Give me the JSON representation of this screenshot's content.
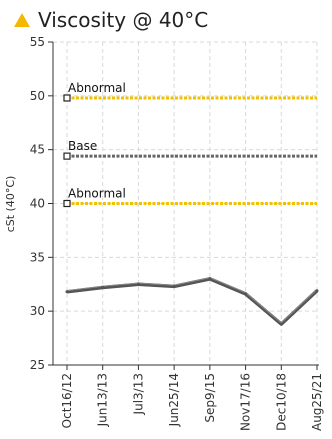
{
  "header": {
    "title": "Viscosity @ 40°C",
    "icon": "warning-triangle-icon",
    "icon_color": "#f5b800"
  },
  "chart_data": {
    "type": "line",
    "title": "Viscosity @ 40°C",
    "xlabel": "",
    "ylabel": "cSt (40°C)",
    "ylim": [
      25,
      55
    ],
    "yticks": [
      25,
      30,
      35,
      40,
      45,
      50,
      55
    ],
    "categories": [
      "Oct16/12",
      "Jun13/13",
      "Jul3/13",
      "Jun25/14",
      "Sep9/15",
      "Nov17/16",
      "Dec10/18",
      "Aug25/21"
    ],
    "series": [
      {
        "values": [
          31.8,
          32.2,
          32.5,
          32.3,
          33.0,
          31.6,
          28.8,
          31.9
        ],
        "color": "#555555"
      }
    ],
    "reference_lines": [
      {
        "label": "Abnormal",
        "value": 49.8,
        "color": "#f2c200"
      },
      {
        "label": "Base",
        "value": 44.4,
        "color": "#666666"
      },
      {
        "label": "Abnormal",
        "value": 40.0,
        "color": "#f2c200"
      }
    ],
    "grid": true
  }
}
